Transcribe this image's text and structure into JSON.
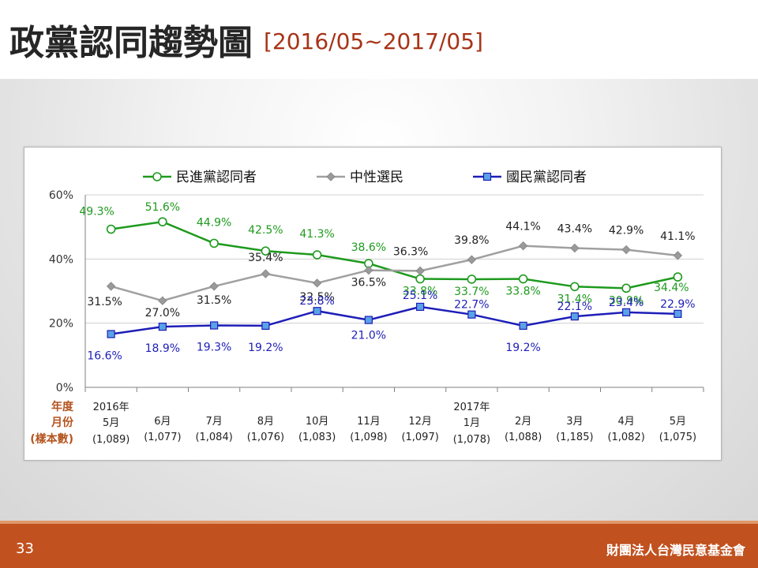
{
  "slide": {
    "title": "政黨認同趨勢圖",
    "subtitle": "[2016/05~2017/05]",
    "page_number": "33",
    "organization": "財團法人台灣民意基金會"
  },
  "colors": {
    "dpp": "#1e9a1e",
    "neutral": "#a0a0a0",
    "kmt": "#1e1eb8",
    "accent": "#c1511f"
  },
  "chart_data": {
    "type": "line",
    "ylim": [
      0,
      60
    ],
    "y_ticks": [
      "0%",
      "20%",
      "40%",
      "60%"
    ],
    "y_tick_values": [
      0,
      20,
      40,
      60
    ],
    "row_labels": [
      "年度",
      "月份",
      "(樣本數)"
    ],
    "categories": [
      {
        "year": "2016年",
        "month": "5月",
        "n": "(1,089)"
      },
      {
        "year": "",
        "month": "6月",
        "n": "(1,077)"
      },
      {
        "year": "",
        "month": "7月",
        "n": "(1,084)"
      },
      {
        "year": "",
        "month": "8月",
        "n": "(1,076)"
      },
      {
        "year": "",
        "month": "10月",
        "n": "(1,083)"
      },
      {
        "year": "",
        "month": "11月",
        "n": "(1,098)"
      },
      {
        "year": "",
        "month": "12月",
        "n": "(1,097)"
      },
      {
        "year": "2017年",
        "month": "1月",
        "n": "(1,078)"
      },
      {
        "year": "",
        "month": "2月",
        "n": "(1,088)"
      },
      {
        "year": "",
        "month": "3月",
        "n": "(1,185)"
      },
      {
        "year": "",
        "month": "4月",
        "n": "(1,082)"
      },
      {
        "year": "",
        "month": "5月",
        "n": "(1,075)"
      }
    ],
    "series": [
      {
        "name": "民進黨認同者",
        "key": "dpp",
        "marker": "circle",
        "values": [
          49.3,
          51.6,
          44.9,
          42.5,
          41.3,
          38.6,
          33.8,
          33.7,
          33.8,
          31.4,
          30.9,
          34.4
        ]
      },
      {
        "name": "中性選民",
        "key": "neutral",
        "marker": "diamond",
        "values": [
          31.5,
          27.0,
          31.5,
          35.4,
          32.5,
          36.5,
          36.3,
          39.8,
          44.1,
          43.4,
          42.9,
          41.1
        ]
      },
      {
        "name": "國民黨認同者",
        "key": "kmt",
        "marker": "square",
        "values": [
          16.6,
          18.9,
          19.3,
          19.2,
          23.8,
          21.0,
          25.1,
          22.7,
          19.2,
          22.1,
          23.4,
          22.9
        ]
      }
    ],
    "grid": true,
    "legend_position": "top"
  }
}
